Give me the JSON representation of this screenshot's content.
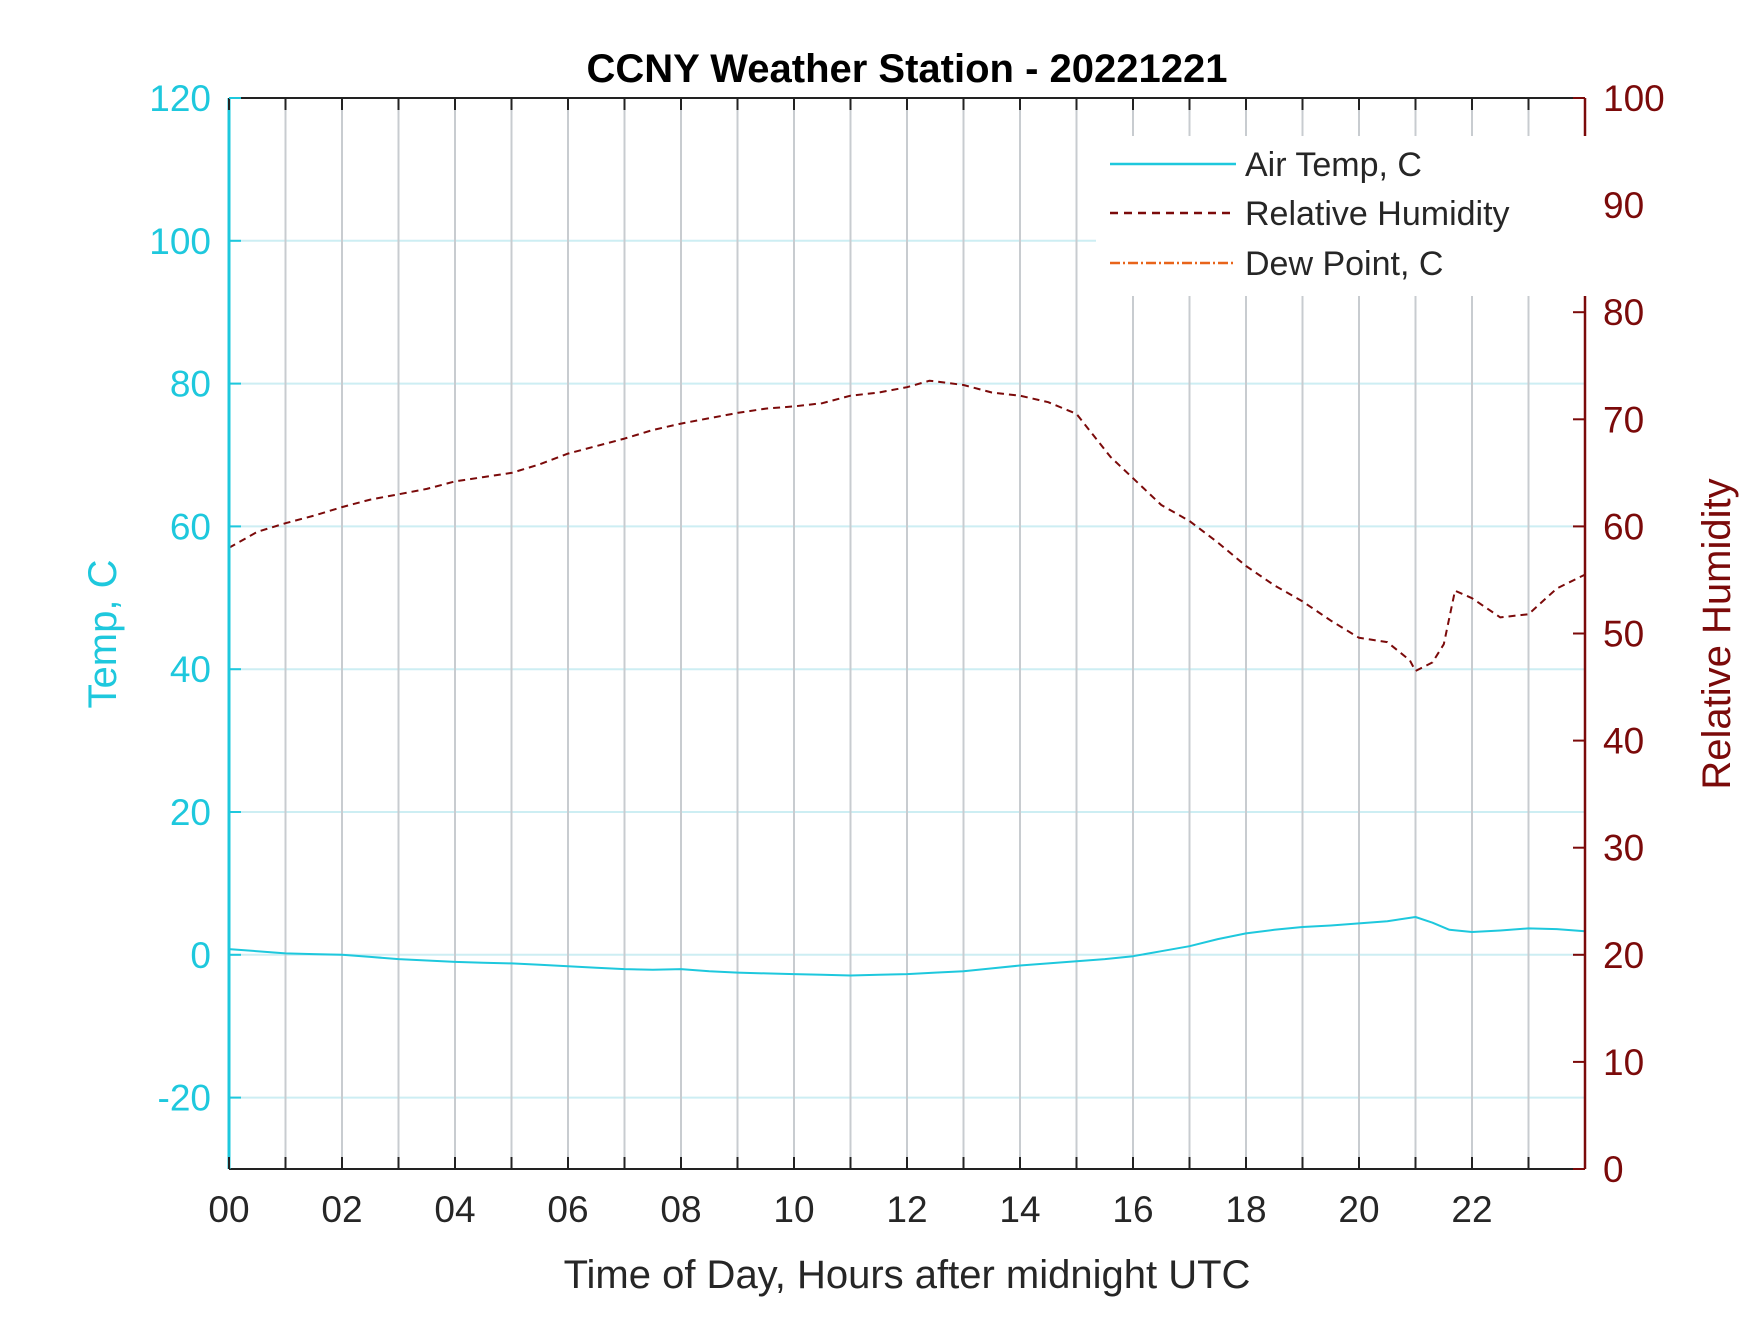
{
  "chart_data": {
    "type": "line",
    "title": "CCNY Weather Station - 20221221",
    "xlabel": "Time of Day, Hours after midnight UTC",
    "ylabel_left": "Temp, C",
    "ylabel_right": "Relative Humidity",
    "xlim": [
      0,
      24
    ],
    "ylim_left": [
      -30,
      120
    ],
    "ylim_right": [
      0,
      100
    ],
    "x_ticks": [
      0,
      2,
      4,
      6,
      8,
      10,
      12,
      14,
      16,
      18,
      20,
      22
    ],
    "x_tick_labels": [
      "00",
      "02",
      "04",
      "06",
      "08",
      "10",
      "12",
      "14",
      "16",
      "18",
      "20",
      "22"
    ],
    "x_grid_every": 1,
    "y_ticks_left": [
      -20,
      0,
      20,
      40,
      60,
      80,
      100,
      120
    ],
    "y_ticks_right": [
      0,
      10,
      20,
      30,
      40,
      50,
      60,
      70,
      80,
      90,
      100
    ],
    "grid": true,
    "legend_position": "top-right",
    "colors": {
      "left_axis": "#1ec8dd",
      "right_axis": "#7b0a0a",
      "air_temp": "#1ec8dd",
      "relative_humidity": "#7b0a0a",
      "dew_point": "#e8641a",
      "grid_vertical": "#c8ccd0",
      "grid_horizontal": "#cdeef3",
      "frame": "#222222",
      "text": "#262626"
    },
    "series": [
      {
        "name": "Air Temp, C",
        "axis": "left",
        "style": "solid",
        "x": [
          0,
          0.5,
          1,
          1.5,
          2,
          2.5,
          3,
          3.5,
          4,
          4.5,
          5,
          5.5,
          6,
          6.5,
          7,
          7.5,
          8,
          8.5,
          9,
          9.5,
          10,
          10.5,
          11,
          11.5,
          12,
          12.5,
          13,
          13.5,
          14,
          14.5,
          15,
          15.5,
          16,
          16.5,
          17,
          17.5,
          18,
          18.5,
          19,
          19.5,
          20,
          20.5,
          21,
          21.3,
          21.6,
          22,
          22.5,
          23,
          23.5,
          24
        ],
        "y": [
          0.8,
          0.5,
          0.2,
          0.1,
          0,
          -0.3,
          -0.6,
          -0.8,
          -1,
          -1.1,
          -1.2,
          -1.4,
          -1.6,
          -1.8,
          -2.0,
          -2.1,
          -2.0,
          -2.3,
          -2.5,
          -2.6,
          -2.7,
          -2.8,
          -2.9,
          -2.8,
          -2.7,
          -2.5,
          -2.3,
          -1.9,
          -1.5,
          -1.2,
          -0.9,
          -0.6,
          -0.2,
          0.5,
          1.2,
          2.2,
          3.0,
          3.5,
          3.9,
          4.1,
          4.4,
          4.7,
          5.3,
          4.5,
          3.5,
          3.2,
          3.4,
          3.7,
          3.6,
          3.3
        ]
      },
      {
        "name": "Relative Humidity",
        "axis": "right",
        "style": "dashed",
        "x": [
          0,
          0.5,
          1,
          1.5,
          2,
          2.5,
          3,
          3.5,
          4,
          4.5,
          5,
          5.5,
          6,
          6.5,
          7,
          7.5,
          8,
          8.5,
          9,
          9.5,
          10,
          10.5,
          11,
          11.5,
          12,
          12.4,
          13,
          13.5,
          14,
          14.5,
          15,
          15.3,
          15.6,
          16,
          16.5,
          17,
          17.5,
          18,
          18.5,
          19,
          19.5,
          20,
          20.5,
          20.9,
          21,
          21.3,
          21.5,
          21.7,
          22,
          22.5,
          23,
          23.5,
          24
        ],
        "y": [
          58,
          59.5,
          60.3,
          61,
          61.8,
          62.5,
          63,
          63.5,
          64.2,
          64.6,
          65,
          65.8,
          66.8,
          67.5,
          68.2,
          69,
          69.6,
          70.1,
          70.6,
          71,
          71.2,
          71.5,
          72.2,
          72.5,
          73,
          73.6,
          73.2,
          72.5,
          72.2,
          71.6,
          70.5,
          68.5,
          66.5,
          64.5,
          62,
          60.5,
          58.5,
          56.3,
          54.5,
          53,
          51.2,
          49.6,
          49.2,
          47.5,
          46.5,
          47.3,
          49,
          54,
          53.3,
          51.5,
          51.8,
          54.2,
          55.5
        ]
      },
      {
        "name": "Dew Point, C",
        "axis": "left",
        "style": "dash-dot",
        "x": [],
        "y": []
      }
    ]
  }
}
